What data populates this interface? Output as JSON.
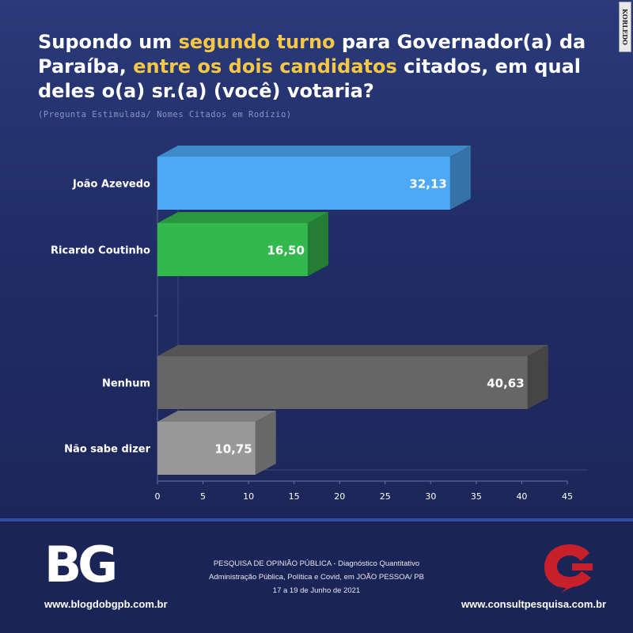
{
  "header": {
    "title_segments": [
      {
        "text": "Supondo um ",
        "highlight": false
      },
      {
        "text": "segundo turno",
        "highlight": true
      },
      {
        "text": " para Governador(a) da Paraíba, ",
        "highlight": false
      },
      {
        "text": "entre os dois candidatos",
        "highlight": true
      },
      {
        "text": " citados, em qual deles o(a) sr.(a) (você) votaria?",
        "highlight": false
      }
    ],
    "subtitle": "(Pregunta Estimulada/ Nomes Citados em Rodízio)",
    "highlight_color": "#f6c744",
    "watermark": "KORLEDO"
  },
  "chart_data": {
    "type": "bar",
    "orientation": "horizontal",
    "categories": [
      "João Azevedo",
      "Ricardo Coutinho",
      "Nenhum",
      "Não sabe dizer"
    ],
    "values": [
      32.13,
      16.5,
      40.63,
      10.75
    ],
    "value_labels": [
      "32,13",
      "16,50",
      "40,63",
      "10,75"
    ],
    "colors": [
      "#4da8f5",
      "#33b84d",
      "#666666",
      "#999999"
    ],
    "xlim": [
      0,
      45
    ],
    "x_ticks": [
      0,
      5,
      10,
      15,
      20,
      25,
      30,
      35,
      40,
      45
    ],
    "grid": false
  },
  "footer": {
    "left_logo": "BG",
    "left_url": "www.blogdobgpb.com.br",
    "center_lines": [
      "PESQUISA DE OPINIÃO PÚBLICA - Diagnóstico Quantitativo",
      "Administração Pública, Política e Covid, em JOÃO PESSOA/ PB",
      "17 a 19 de Junho de 2021"
    ],
    "right_logo": "consult-logo",
    "right_url": "www.consultpesquisa.com.br",
    "accent_red": "#c8202a"
  }
}
